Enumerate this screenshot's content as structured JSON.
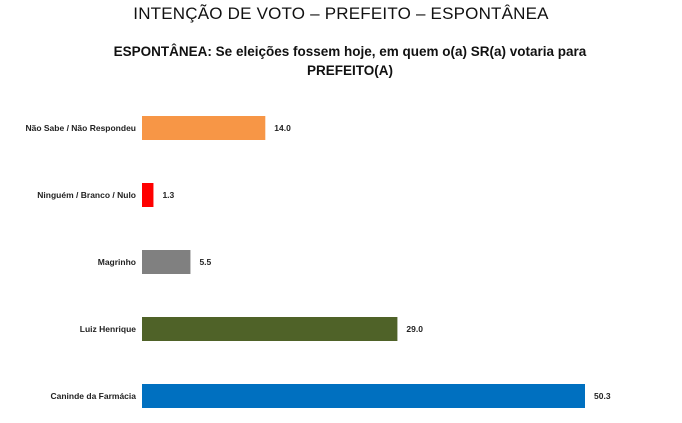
{
  "header": {
    "title": "INTENÇÃO DE VOTO – PREFEITO – ESPONTÂNEA"
  },
  "chart_data": {
    "type": "bar",
    "orientation": "horizontal",
    "title": "ESPONTÂNEA: Se eleições fossem hoje, em quem o(a) SR(a) votaria para PREFEITO(A)",
    "categories": [
      "Não Sabe / Não Respondeu",
      "Ninguém / Branco / Nulo",
      "Magrinho",
      "Luiz Henrique",
      "Caninde da Farmácia"
    ],
    "values": [
      14.0,
      1.3,
      5.5,
      29.0,
      50.3
    ],
    "value_labels": [
      "14.0",
      "1.3",
      "5.5",
      "29.0",
      "50.3"
    ],
    "colors": [
      "#F79646",
      "#FF0000",
      "#808080",
      "#4F6228",
      "#0070C0"
    ],
    "xlim": [
      0,
      50.3
    ],
    "grid": false,
    "legend": "none"
  }
}
